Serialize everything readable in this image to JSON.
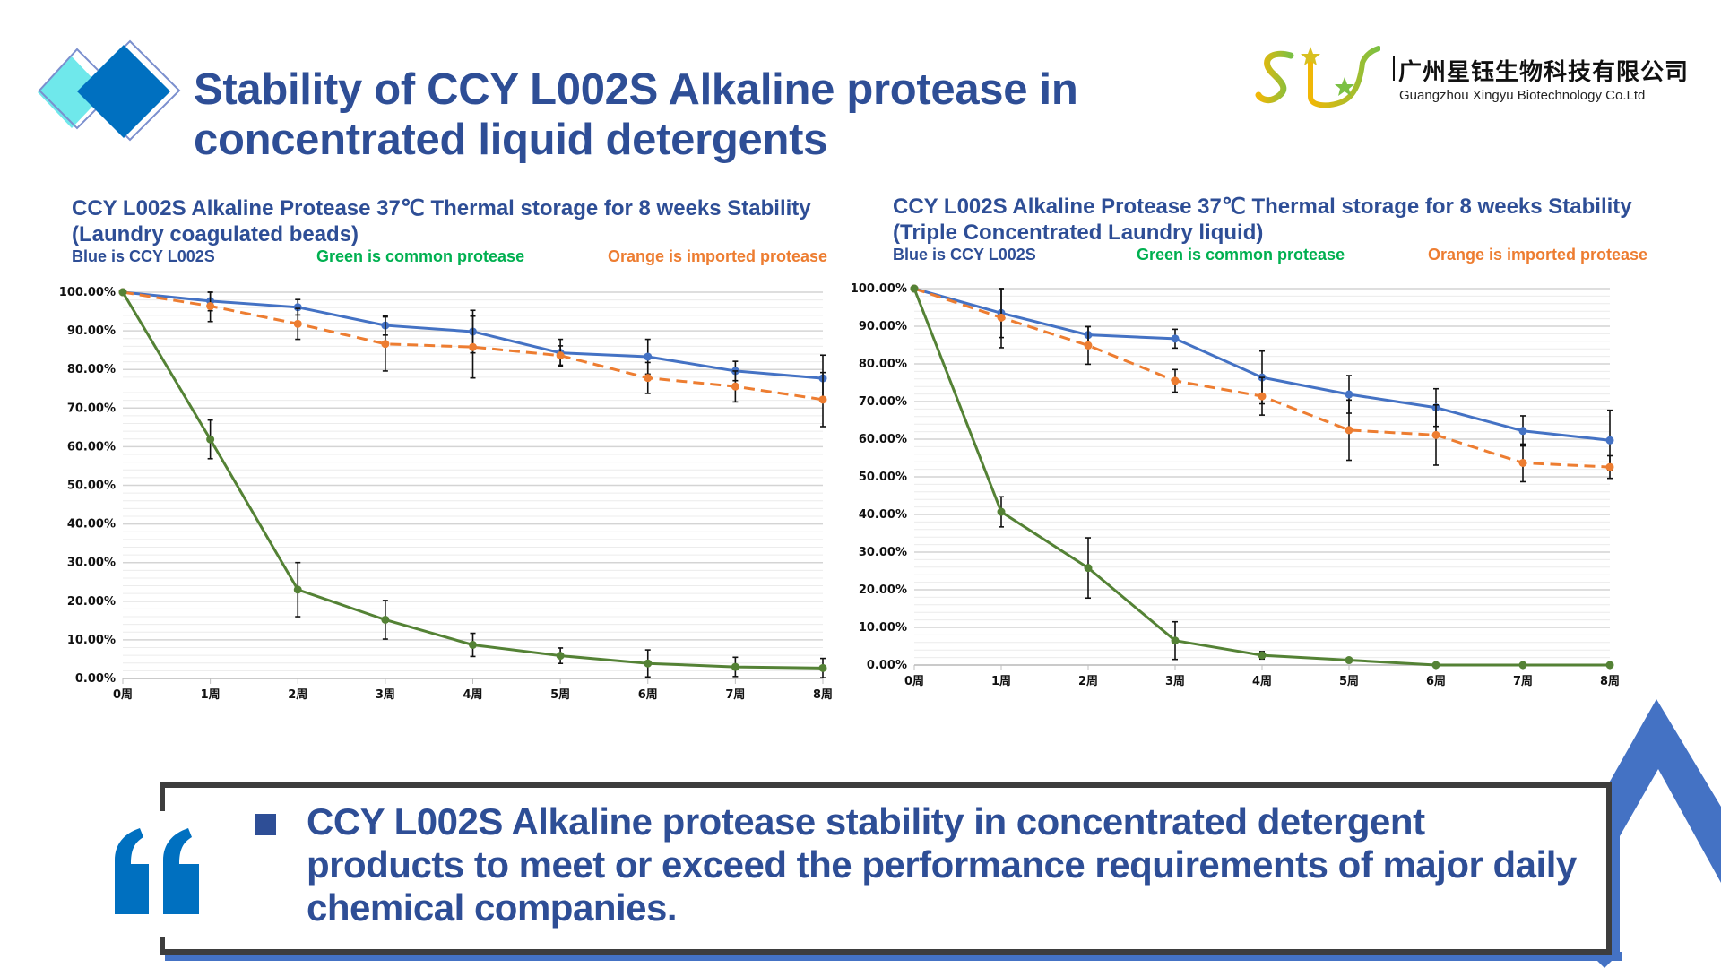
{
  "header": {
    "title": "Stability of CCY L002S Alkaline protease in concentrated liquid detergents",
    "company_cn": "广州星钰生物科技有限公司",
    "company_en": "Guangzhou Xingyu Biotechnology Co.Ltd",
    "logo_text": "SLY"
  },
  "legend_notes": {
    "blue": "Blue is CCY L002S",
    "green": "Green is common protease",
    "orange": "Orange is imported protease"
  },
  "colors": {
    "title_blue": "#2E4E96",
    "blue_series": "#4472C4",
    "orange_series": "#ED7D31",
    "green_series": "#548235",
    "legend_green": "#00B050",
    "legend_orange": "#ED7D31",
    "accent_blue": "#4472C4"
  },
  "summary": {
    "text": "CCY L002S Alkaline protease stability in concentrated detergent products to meet or exceed the performance requirements of major daily chemical companies."
  },
  "chart_data": [
    {
      "type": "line",
      "title": "CCY L002S Alkaline Protease 37℃ Thermal storage for 8 weeks Stability",
      "subtitle": "(Laundry coagulated beads)",
      "xlabel": "",
      "ylabel": "",
      "categories": [
        "0周",
        "1周",
        "2周",
        "3周",
        "4周",
        "5周",
        "6周",
        "7周",
        "8周"
      ],
      "y_ticks": [
        "0.00%",
        "10.00%",
        "20.00%",
        "30.00%",
        "40.00%",
        "50.00%",
        "60.00%",
        "70.00%",
        "80.00%",
        "90.00%",
        "100.00%"
      ],
      "ylim": [
        0,
        100
      ],
      "grid": true,
      "series": [
        {
          "name": "CCY L002S",
          "color": "blue",
          "dashed": false,
          "values": [
            100,
            97.7,
            96.1,
            91.4,
            89.8,
            84.3,
            83.3,
            79.6,
            77.7
          ],
          "error": [
            0,
            2.5,
            2.0,
            2.5,
            5.5,
            3.5,
            4.5,
            2.5,
            6.0
          ]
        },
        {
          "name": "Imported protease",
          "color": "orange",
          "dashed": true,
          "values": [
            100,
            96.4,
            91.8,
            86.6,
            85.8,
            83.6,
            77.8,
            75.6,
            72.2
          ],
          "error": [
            0,
            4.0,
            4.0,
            7.0,
            8.0,
            2.5,
            4.0,
            4.0,
            7.0
          ]
        },
        {
          "name": "Common protease",
          "color": "green",
          "dashed": false,
          "values": [
            100,
            61.9,
            23.0,
            15.2,
            8.7,
            5.9,
            3.9,
            3.0,
            2.7
          ],
          "error": [
            0,
            5.0,
            7.0,
            5.0,
            3.0,
            2.0,
            3.5,
            2.5,
            2.5
          ]
        }
      ]
    },
    {
      "type": "line",
      "title": "CCY L002S Alkaline Protease 37℃ Thermal storage for 8 weeks Stability",
      "subtitle": "(Triple Concentrated Laundry liquid)",
      "xlabel": "",
      "ylabel": "",
      "categories": [
        "0周",
        "1周",
        "2周",
        "3周",
        "4周",
        "5周",
        "6周",
        "7周",
        "8周"
      ],
      "y_ticks": [
        "0.00%",
        "10.00%",
        "20.00%",
        "30.00%",
        "40.00%",
        "50.00%",
        "60.00%",
        "70.00%",
        "80.00%",
        "90.00%",
        "100.00%"
      ],
      "ylim": [
        0,
        100
      ],
      "grid": true,
      "series": [
        {
          "name": "CCY L002S",
          "color": "blue",
          "dashed": false,
          "values": [
            100,
            93.5,
            87.7,
            86.7,
            76.4,
            71.9,
            68.4,
            62.2,
            59.7
          ],
          "error": [
            0,
            6.5,
            2.2,
            2.5,
            7.0,
            5.0,
            5.0,
            4.0,
            8.0
          ]
        },
        {
          "name": "Imported protease",
          "color": "orange",
          "dashed": true,
          "values": [
            100,
            92.3,
            84.9,
            75.5,
            71.4,
            62.4,
            61.1,
            53.7,
            52.6
          ],
          "error": [
            0,
            8.0,
            5.0,
            3.0,
            5.0,
            8.0,
            8.0,
            5.0,
            3.0
          ]
        },
        {
          "name": "Common protease",
          "color": "green",
          "dashed": false,
          "values": [
            100,
            40.7,
            25.8,
            6.5,
            2.6,
            1.3,
            0,
            0,
            0
          ],
          "error": [
            0,
            4.0,
            8.0,
            5.0,
            1.0,
            0,
            0,
            0,
            0
          ]
        }
      ]
    }
  ]
}
